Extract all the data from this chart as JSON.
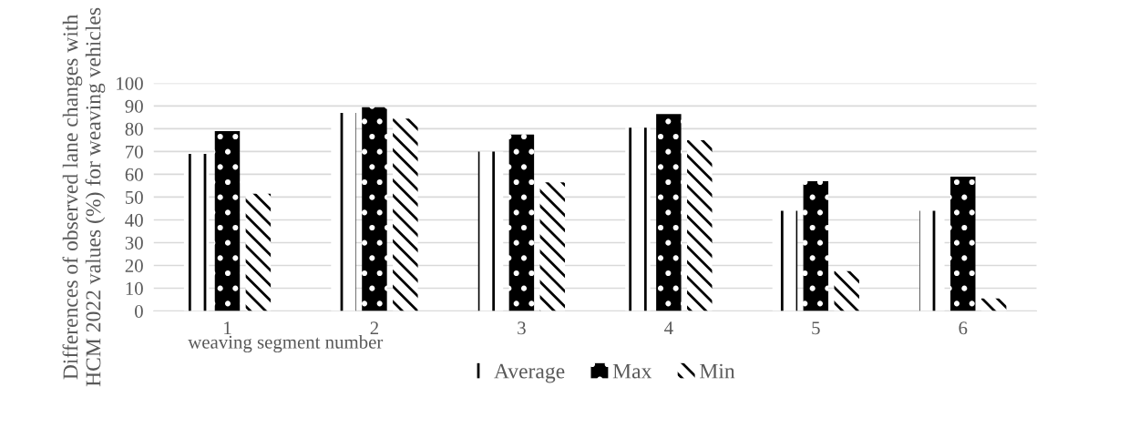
{
  "chart_data": {
    "type": "bar",
    "categories": [
      "1",
      "2",
      "3",
      "4",
      "5",
      "6"
    ],
    "ylabel": "Differences of observed lane changes with HCM 2022 values (%) for weaving vehicles",
    "xlabel": "weaving segment number",
    "series": [
      {
        "name": "Average",
        "color": "#000000",
        "values": [
          69,
          87,
          70,
          80.5,
          44,
          44
        ]
      },
      {
        "name": "Max",
        "color": "#000000",
        "values": [
          79,
          89.5,
          77.5,
          86.5,
          57,
          59
        ]
      },
      {
        "name": "Min",
        "color": "#000000",
        "values": [
          51.5,
          84.5,
          56.5,
          75,
          17.5,
          5.5
        ]
      }
    ],
    "ylim": [
      0,
      100
    ],
    "yticks": [
      0,
      10,
      20,
      30,
      40,
      50,
      60,
      70,
      80,
      90,
      100
    ],
    "grid": "y",
    "legend": "bottom"
  }
}
